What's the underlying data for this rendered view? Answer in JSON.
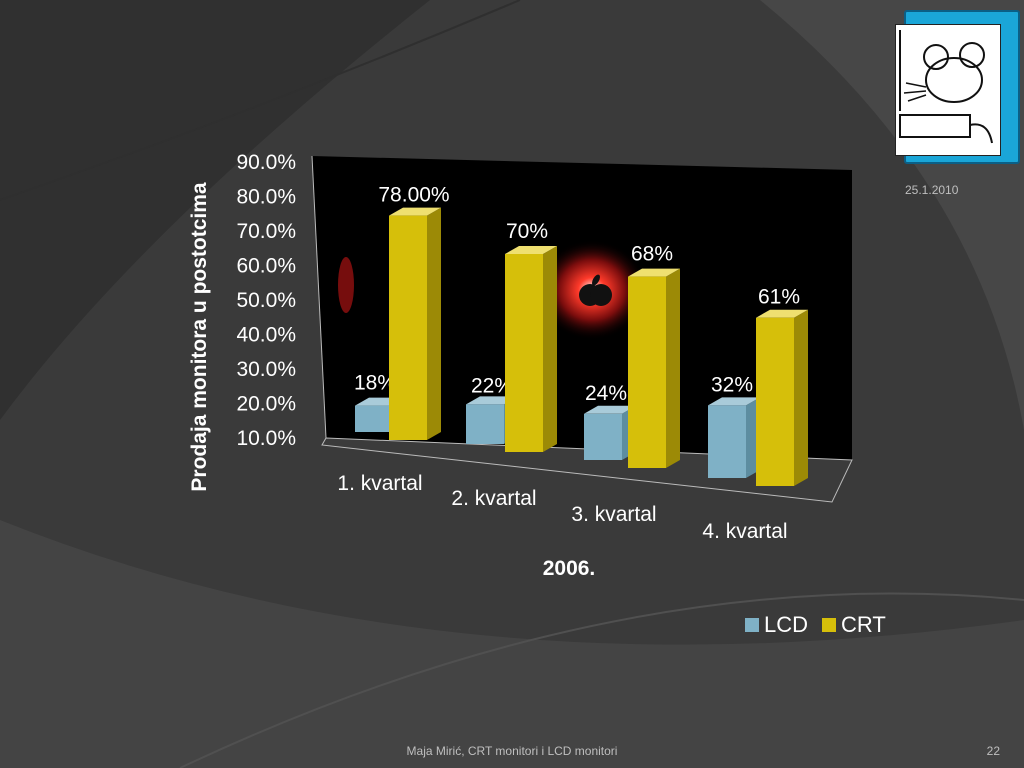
{
  "slide": {
    "date": "25.1.2010",
    "footer": "Maja Mirić, CRT monitori i LCD monitori",
    "page_number": "22"
  },
  "colors": {
    "background": "#3a3a3a",
    "lcd": "#7fb1c6",
    "crt": "#d6bf0a",
    "accent": "#1aa6d8"
  },
  "chart_data": {
    "type": "bar",
    "title": "",
    "xlabel": "2006.",
    "ylabel": "Prodaja monitora u postotcima",
    "categories": [
      "1. kvartal",
      "2. kvartal",
      "3. kvartal",
      "4. kvartal"
    ],
    "series": [
      {
        "name": "LCD",
        "values": [
          18,
          22,
          24,
          32
        ],
        "labels": [
          "18%",
          "22%",
          "24%",
          "32%"
        ]
      },
      {
        "name": "CRT",
        "values": [
          78,
          70,
          68,
          61
        ],
        "labels": [
          "78.00%",
          "70%",
          "68%",
          "61%"
        ]
      }
    ],
    "yticks": [
      "10.0%",
      "20.0%",
      "30.0%",
      "40.0%",
      "50.0%",
      "60.0%",
      "70.0%",
      "80.0%",
      "90.0%"
    ],
    "ylim": [
      10,
      90
    ],
    "legend_position": "bottom-right"
  }
}
